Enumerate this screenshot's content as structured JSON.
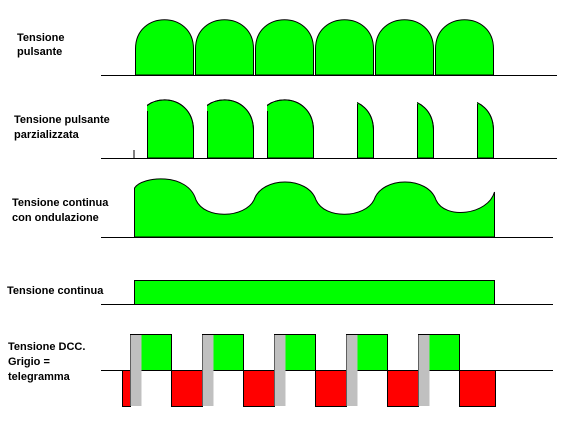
{
  "labels": [
    [
      "Tensione",
      "pulsante"
    ],
    [
      "Tensione pulsante",
      "parzializzata"
    ],
    [
      "Tensione continua",
      "con ondulazione"
    ],
    [
      "Tensione continua"
    ],
    [
      "Tensione DCC.",
      "Grigio =",
      "telegramma"
    ]
  ]
}
